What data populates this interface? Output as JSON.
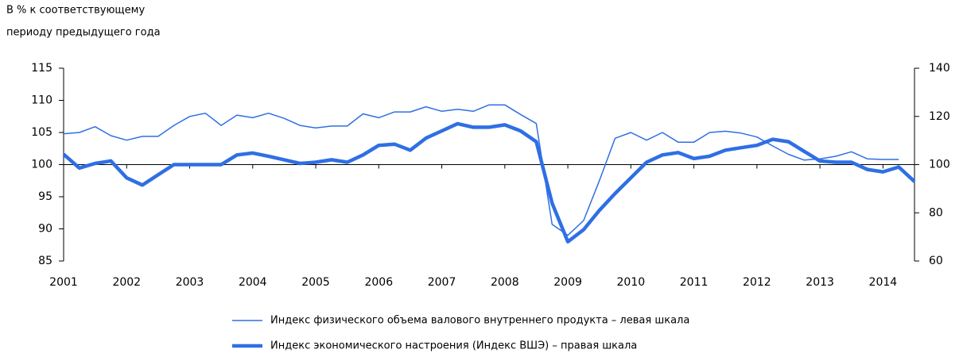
{
  "chart_data": {
    "type": "line",
    "y_label": [
      "В % к соответствующему",
      "периоду предыдущего года"
    ],
    "x": [
      2001,
      2001.25,
      2001.5,
      2001.75,
      2002,
      2002.25,
      2002.5,
      2002.75,
      2003,
      2003.25,
      2003.5,
      2003.75,
      2004,
      2004.25,
      2004.5,
      2004.75,
      2005,
      2005.25,
      2005.5,
      2005.75,
      2006,
      2006.25,
      2006.5,
      2006.75,
      2007,
      2007.25,
      2007.5,
      2007.75,
      2008,
      2008.25,
      2008.5,
      2008.75,
      2009,
      2009.25,
      2009.5,
      2009.75,
      2010,
      2010.25,
      2010.5,
      2010.75,
      2011,
      2011.25,
      2011.5,
      2011.75,
      2012,
      2012.25,
      2012.5,
      2012.75,
      2013,
      2013.25,
      2013.5,
      2013.75,
      2014,
      2014.25,
      2014.5
    ],
    "series": [
      {
        "name": "Индекс физического объема валового внутреннего продукта – левая шкала",
        "color": "#2f6fe4",
        "width": 1.5,
        "values": [
          104.8,
          105.0,
          105.9,
          104.5,
          103.8,
          104.4,
          104.4,
          106.1,
          107.5,
          108.0,
          106.1,
          107.7,
          107.3,
          108.0,
          107.2,
          106.1,
          105.7,
          106.0,
          106.0,
          107.9,
          107.3,
          108.2,
          108.2,
          109.0,
          108.3,
          108.6,
          108.3,
          109.3,
          109.3,
          107.8,
          106.4,
          90.7,
          89.0,
          91.3,
          97.5,
          104.1,
          105.0,
          103.8,
          105.0,
          103.5,
          103.5,
          105.0,
          105.2,
          104.9,
          104.3,
          102.9,
          101.6,
          100.7,
          100.9,
          101.3,
          102.0,
          100.9,
          100.8,
          100.8,
          null
        ]
      },
      {
        "name": "Индекс экономического настроения (Индекс ВШЭ) – правая шкала",
        "color": "#2f6fe4",
        "width": 4.5,
        "axis": "y2",
        "values": [
          104.3,
          98.6,
          100.5,
          101.5,
          94.5,
          91.5,
          95.8,
          100,
          100,
          100,
          100,
          104,
          104.8,
          103.5,
          102,
          100.5,
          101,
          102,
          101,
          104,
          108,
          108.5,
          106,
          111,
          114,
          117,
          115.5,
          115.5,
          116.5,
          114,
          109.5,
          84,
          68,
          73,
          81,
          88,
          94.5,
          101,
          104,
          105,
          102.5,
          103.5,
          106,
          107,
          108,
          110.5,
          109.5,
          105.5,
          101.5,
          101,
          101,
          98,
          97,
          99,
          93
        ]
      }
    ],
    "xlim": [
      2001,
      2014.5
    ],
    "xticks": [
      2001,
      2002,
      2003,
      2004,
      2005,
      2006,
      2007,
      2008,
      2009,
      2010,
      2011,
      2012,
      2013,
      2014
    ],
    "ylim": [
      85,
      115
    ],
    "yticks": [
      85,
      90,
      95,
      100,
      105,
      110,
      115
    ],
    "y2lim": [
      60,
      140
    ],
    "y2ticks": [
      60,
      80,
      100,
      120,
      140
    ],
    "x_axis_at": 100
  }
}
